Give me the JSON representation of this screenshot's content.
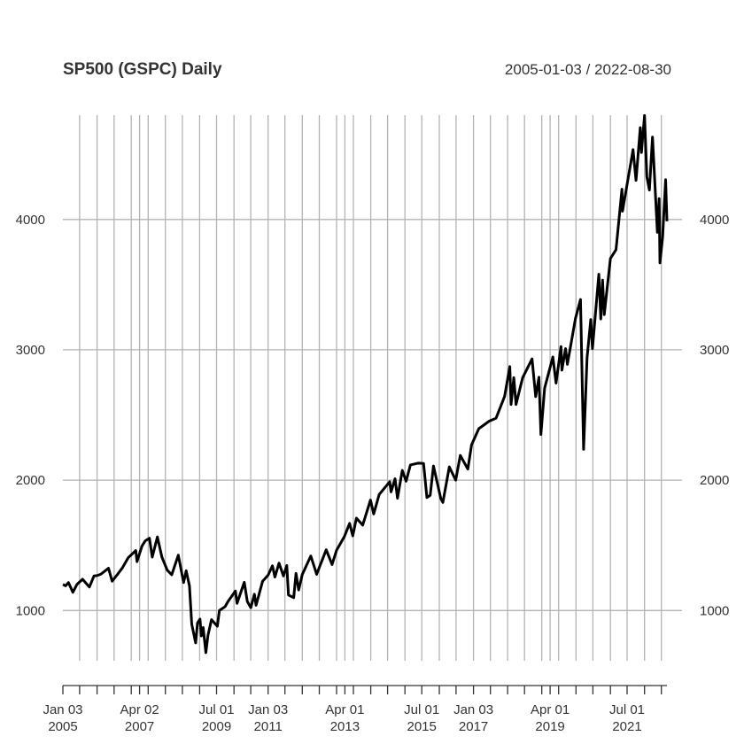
{
  "chart_data": {
    "type": "line",
    "title": "SP500 (GSPC) Daily",
    "date_range": "2005-01-03 / 2022-08-30",
    "xlim": [
      "2005-01-03",
      "2022-08-30"
    ],
    "ylim": [
      615,
      4800
    ],
    "grid": true,
    "y_ticks": [
      1000,
      2000,
      3000,
      4000
    ],
    "y_tick_labels": [
      "1000",
      "2000",
      "3000",
      "4000"
    ],
    "x_gridlines": [
      "2005-07-01",
      "2006-01-03",
      "2006-07-03",
      "2007-01-03",
      "2007-04-02",
      "2007-07-02",
      "2008-01-02",
      "2008-07-01",
      "2009-01-02",
      "2009-07-01",
      "2010-01-04",
      "2010-07-01",
      "2011-01-03",
      "2011-07-01",
      "2012-01-03",
      "2012-07-02",
      "2013-01-02",
      "2013-04-01",
      "2013-07-01",
      "2014-01-02",
      "2014-07-01",
      "2015-01-02",
      "2015-07-01",
      "2016-01-04",
      "2016-07-01",
      "2017-01-03",
      "2017-07-03",
      "2018-01-02",
      "2018-07-02",
      "2019-01-02",
      "2019-04-01",
      "2019-07-01",
      "2020-01-02",
      "2020-07-01",
      "2021-01-04",
      "2021-07-01",
      "2022-01-03",
      "2022-07-01"
    ],
    "x_ticks": [
      "2005-01-03",
      "2005-07-01",
      "2006-01-03",
      "2006-07-03",
      "2007-01-03",
      "2007-04-02",
      "2007-07-02",
      "2008-01-02",
      "2008-07-01",
      "2009-01-02",
      "2009-07-01",
      "2010-01-04",
      "2010-07-01",
      "2011-01-03",
      "2011-07-01",
      "2012-01-03",
      "2012-07-02",
      "2013-01-02",
      "2013-04-01",
      "2013-07-01",
      "2014-01-02",
      "2014-07-01",
      "2015-01-02",
      "2015-07-01",
      "2016-01-04",
      "2016-07-01",
      "2017-01-03",
      "2017-07-03",
      "2018-01-02",
      "2018-07-02",
      "2019-01-02",
      "2019-04-01",
      "2019-07-01",
      "2020-01-02",
      "2020-07-01",
      "2021-01-04",
      "2021-07-01",
      "2022-01-03",
      "2022-07-01"
    ],
    "x_tick_labels": [
      {
        "date": "2005-01-03",
        "top": "Jan 03",
        "bottom": "2005"
      },
      {
        "date": "2007-04-02",
        "top": "Apr 02",
        "bottom": "2007"
      },
      {
        "date": "2009-07-01",
        "top": "Jul 01",
        "bottom": "2009"
      },
      {
        "date": "2011-01-03",
        "top": "Jan 03",
        "bottom": "2011"
      },
      {
        "date": "2013-04-01",
        "top": "Apr 01",
        "bottom": "2013"
      },
      {
        "date": "2015-07-01",
        "top": "Jul 01",
        "bottom": "2015"
      },
      {
        "date": "2017-01-03",
        "top": "Jan 03",
        "bottom": "2017"
      },
      {
        "date": "2019-04-01",
        "top": "Apr 01",
        "bottom": "2019"
      },
      {
        "date": "2021-07-01",
        "top": "Jul 01",
        "bottom": "2021"
      }
    ],
    "series": [
      {
        "points": [
          [
            "2005-01-03",
            1200
          ],
          [
            "2005-02-01",
            1190
          ],
          [
            "2005-03-04",
            1215
          ],
          [
            "2005-04-20",
            1140
          ],
          [
            "2005-06-01",
            1200
          ],
          [
            "2005-08-01",
            1240
          ],
          [
            "2005-10-13",
            1180
          ],
          [
            "2005-12-01",
            1265
          ],
          [
            "2006-01-03",
            1268
          ],
          [
            "2006-02-15",
            1280
          ],
          [
            "2006-05-05",
            1325
          ],
          [
            "2006-06-13",
            1225
          ],
          [
            "2006-08-01",
            1270
          ],
          [
            "2006-10-02",
            1330
          ],
          [
            "2006-12-01",
            1405
          ],
          [
            "2007-02-20",
            1460
          ],
          [
            "2007-03-05",
            1375
          ],
          [
            "2007-04-27",
            1495
          ],
          [
            "2007-06-01",
            1535
          ],
          [
            "2007-07-16",
            1555
          ],
          [
            "2007-08-15",
            1410
          ],
          [
            "2007-10-09",
            1565
          ],
          [
            "2007-11-26",
            1410
          ],
          [
            "2008-01-22",
            1310
          ],
          [
            "2008-03-10",
            1275
          ],
          [
            "2008-05-19",
            1425
          ],
          [
            "2008-07-15",
            1215
          ],
          [
            "2008-08-11",
            1305
          ],
          [
            "2008-09-15",
            1190
          ],
          [
            "2008-10-10",
            895
          ],
          [
            "2008-11-20",
            752
          ],
          [
            "2008-12-10",
            905
          ],
          [
            "2009-01-06",
            935
          ],
          [
            "2009-01-20",
            805
          ],
          [
            "2009-02-09",
            870
          ],
          [
            "2009-03-09",
            677
          ],
          [
            "2009-04-01",
            810
          ],
          [
            "2009-05-08",
            930
          ],
          [
            "2009-07-10",
            880
          ],
          [
            "2009-08-01",
            1000
          ],
          [
            "2009-10-01",
            1030
          ],
          [
            "2009-11-01",
            1070
          ],
          [
            "2010-01-19",
            1150
          ],
          [
            "2010-02-05",
            1055
          ],
          [
            "2010-04-23",
            1217
          ],
          [
            "2010-05-25",
            1070
          ],
          [
            "2010-07-02",
            1022
          ],
          [
            "2010-08-09",
            1125
          ],
          [
            "2010-08-27",
            1040
          ],
          [
            "2010-11-05",
            1225
          ],
          [
            "2011-01-03",
            1271
          ],
          [
            "2011-02-18",
            1343
          ],
          [
            "2011-03-16",
            1257
          ],
          [
            "2011-04-29",
            1364
          ],
          [
            "2011-06-15",
            1265
          ],
          [
            "2011-07-21",
            1345
          ],
          [
            "2011-08-08",
            1119
          ],
          [
            "2011-10-03",
            1099
          ],
          [
            "2011-10-27",
            1285
          ],
          [
            "2011-11-25",
            1158
          ],
          [
            "2012-01-03",
            1277
          ],
          [
            "2012-04-02",
            1419
          ],
          [
            "2012-06-04",
            1278
          ],
          [
            "2012-09-14",
            1466
          ],
          [
            "2012-11-15",
            1353
          ],
          [
            "2013-01-02",
            1462
          ],
          [
            "2013-03-28",
            1569
          ],
          [
            "2013-05-21",
            1669
          ],
          [
            "2013-06-24",
            1573
          ],
          [
            "2013-08-02",
            1709
          ],
          [
            "2013-10-08",
            1655
          ],
          [
            "2013-12-31",
            1848
          ],
          [
            "2014-02-03",
            1741
          ],
          [
            "2014-04-02",
            1890
          ],
          [
            "2014-07-24",
            1988
          ],
          [
            "2014-08-07",
            1910
          ],
          [
            "2014-09-18",
            2011
          ],
          [
            "2014-10-15",
            1862
          ],
          [
            "2014-12-05",
            2075
          ],
          [
            "2015-01-15",
            1992
          ],
          [
            "2015-03-02",
            2117
          ],
          [
            "2015-05-21",
            2131
          ],
          [
            "2015-07-20",
            2128
          ],
          [
            "2015-08-25",
            1867
          ],
          [
            "2015-09-29",
            1884
          ],
          [
            "2015-11-03",
            2109
          ],
          [
            "2016-01-20",
            1859
          ],
          [
            "2016-02-11",
            1829
          ],
          [
            "2016-04-20",
            2102
          ],
          [
            "2016-06-27",
            2000
          ],
          [
            "2016-08-15",
            2190
          ],
          [
            "2016-11-04",
            2085
          ],
          [
            "2016-12-13",
            2271
          ],
          [
            "2017-03-01",
            2395
          ],
          [
            "2017-06-19",
            2453
          ],
          [
            "2017-09-01",
            2476
          ],
          [
            "2017-12-01",
            2642
          ],
          [
            "2018-01-26",
            2872
          ],
          [
            "2018-02-08",
            2581
          ],
          [
            "2018-03-09",
            2786
          ],
          [
            "2018-04-02",
            2581
          ],
          [
            "2018-06-12",
            2786
          ],
          [
            "2018-09-20",
            2930
          ],
          [
            "2018-10-29",
            2641
          ],
          [
            "2018-12-03",
            2790
          ],
          [
            "2018-12-24",
            2351
          ],
          [
            "2019-02-01",
            2706
          ],
          [
            "2019-04-30",
            2945
          ],
          [
            "2019-06-03",
            2744
          ],
          [
            "2019-07-26",
            3025
          ],
          [
            "2019-08-05",
            2844
          ],
          [
            "2019-09-12",
            3009
          ],
          [
            "2019-10-02",
            2888
          ],
          [
            "2019-12-27",
            3240
          ],
          [
            "2020-02-19",
            3386
          ],
          [
            "2020-03-23",
            2237
          ],
          [
            "2020-04-29",
            2939
          ],
          [
            "2020-06-08",
            3232
          ],
          [
            "2020-06-26",
            3009
          ],
          [
            "2020-09-02",
            3580
          ],
          [
            "2020-09-23",
            3237
          ],
          [
            "2020-10-12",
            3534
          ],
          [
            "2020-10-30",
            3270
          ],
          [
            "2021-01-04",
            3701
          ],
          [
            "2021-03-04",
            3768
          ],
          [
            "2021-05-07",
            4232
          ],
          [
            "2021-05-12",
            4063
          ],
          [
            "2021-08-27",
            4509
          ],
          [
            "2021-09-02",
            4536
          ],
          [
            "2021-10-04",
            4300
          ],
          [
            "2021-11-18",
            4704
          ],
          [
            "2021-12-01",
            4513
          ],
          [
            "2022-01-03",
            4797
          ],
          [
            "2022-01-27",
            4327
          ],
          [
            "2022-02-24",
            4225
          ],
          [
            "2022-03-29",
            4632
          ],
          [
            "2022-05-20",
            3901
          ],
          [
            "2022-06-08",
            4160
          ],
          [
            "2022-06-16",
            3667
          ],
          [
            "2022-07-15",
            3863
          ],
          [
            "2022-08-16",
            4305
          ],
          [
            "2022-08-30",
            3986
          ]
        ]
      }
    ]
  }
}
